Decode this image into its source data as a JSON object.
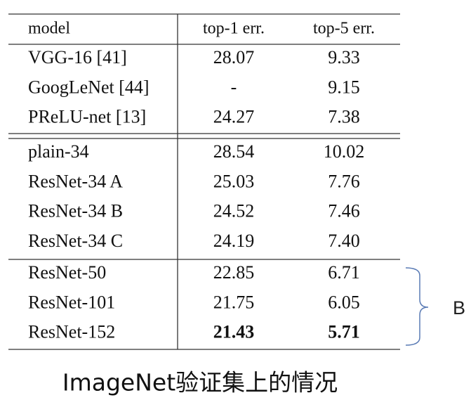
{
  "table": {
    "header": [
      "model",
      "top-1 err.",
      "top-5 err."
    ],
    "groups": [
      [
        [
          "VGG-16 [41]",
          "28.07",
          "9.33"
        ],
        [
          "GoogLeNet [44]",
          "-",
          "9.15"
        ],
        [
          "PReLU-net [13]",
          "24.27",
          "7.38"
        ]
      ],
      [
        [
          "plain-34",
          "28.54",
          "10.02"
        ],
        [
          "ResNet-34 A",
          "25.03",
          "7.76"
        ],
        [
          "ResNet-34 B",
          "24.52",
          "7.46"
        ],
        [
          "ResNet-34 C",
          "24.19",
          "7.40"
        ]
      ],
      [
        [
          "ResNet-50",
          "22.85",
          "6.71"
        ],
        [
          "ResNet-101",
          "21.75",
          "6.05"
        ],
        [
          "ResNet-152",
          "21.43",
          "5.71"
        ]
      ]
    ]
  },
  "annotation": "B",
  "caption": "ImageNet验证集上的情况"
}
